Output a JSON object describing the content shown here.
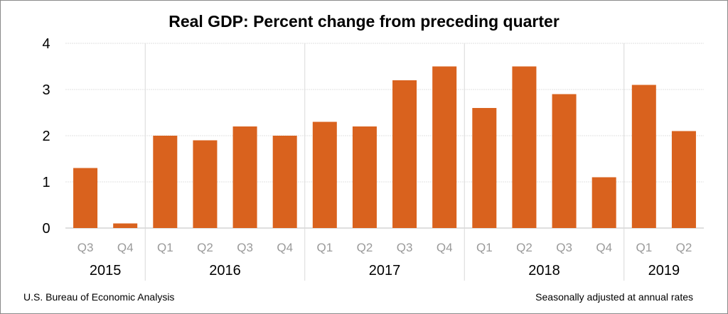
{
  "chart_data": {
    "type": "bar",
    "title": "Real GDP:  Percent change from preceding quarter",
    "categories": [
      "Q3",
      "Q4",
      "Q1",
      "Q2",
      "Q3",
      "Q4",
      "Q1",
      "Q2",
      "Q3",
      "Q4",
      "Q1",
      "Q2",
      "Q3",
      "Q4",
      "Q1",
      "Q2"
    ],
    "groups": [
      {
        "label": "2015",
        "count": 2
      },
      {
        "label": "2016",
        "count": 4
      },
      {
        "label": "2017",
        "count": 4
      },
      {
        "label": "2018",
        "count": 4
      },
      {
        "label": "2019",
        "count": 2
      }
    ],
    "values": [
      1.3,
      0.1,
      2.0,
      1.9,
      2.2,
      2.0,
      2.3,
      2.2,
      3.2,
      3.5,
      2.6,
      3.5,
      2.9,
      1.1,
      3.1,
      2.1
    ],
    "ylim": [
      0,
      4
    ],
    "yticks": [
      0,
      1,
      2,
      3,
      4
    ],
    "grid": true,
    "bar_color": "#D9621E",
    "xlabel": "",
    "ylabel": ""
  },
  "footer": {
    "source": "U.S. Bureau of Economic Analysis",
    "note": "Seasonally adjusted at annual rates"
  }
}
